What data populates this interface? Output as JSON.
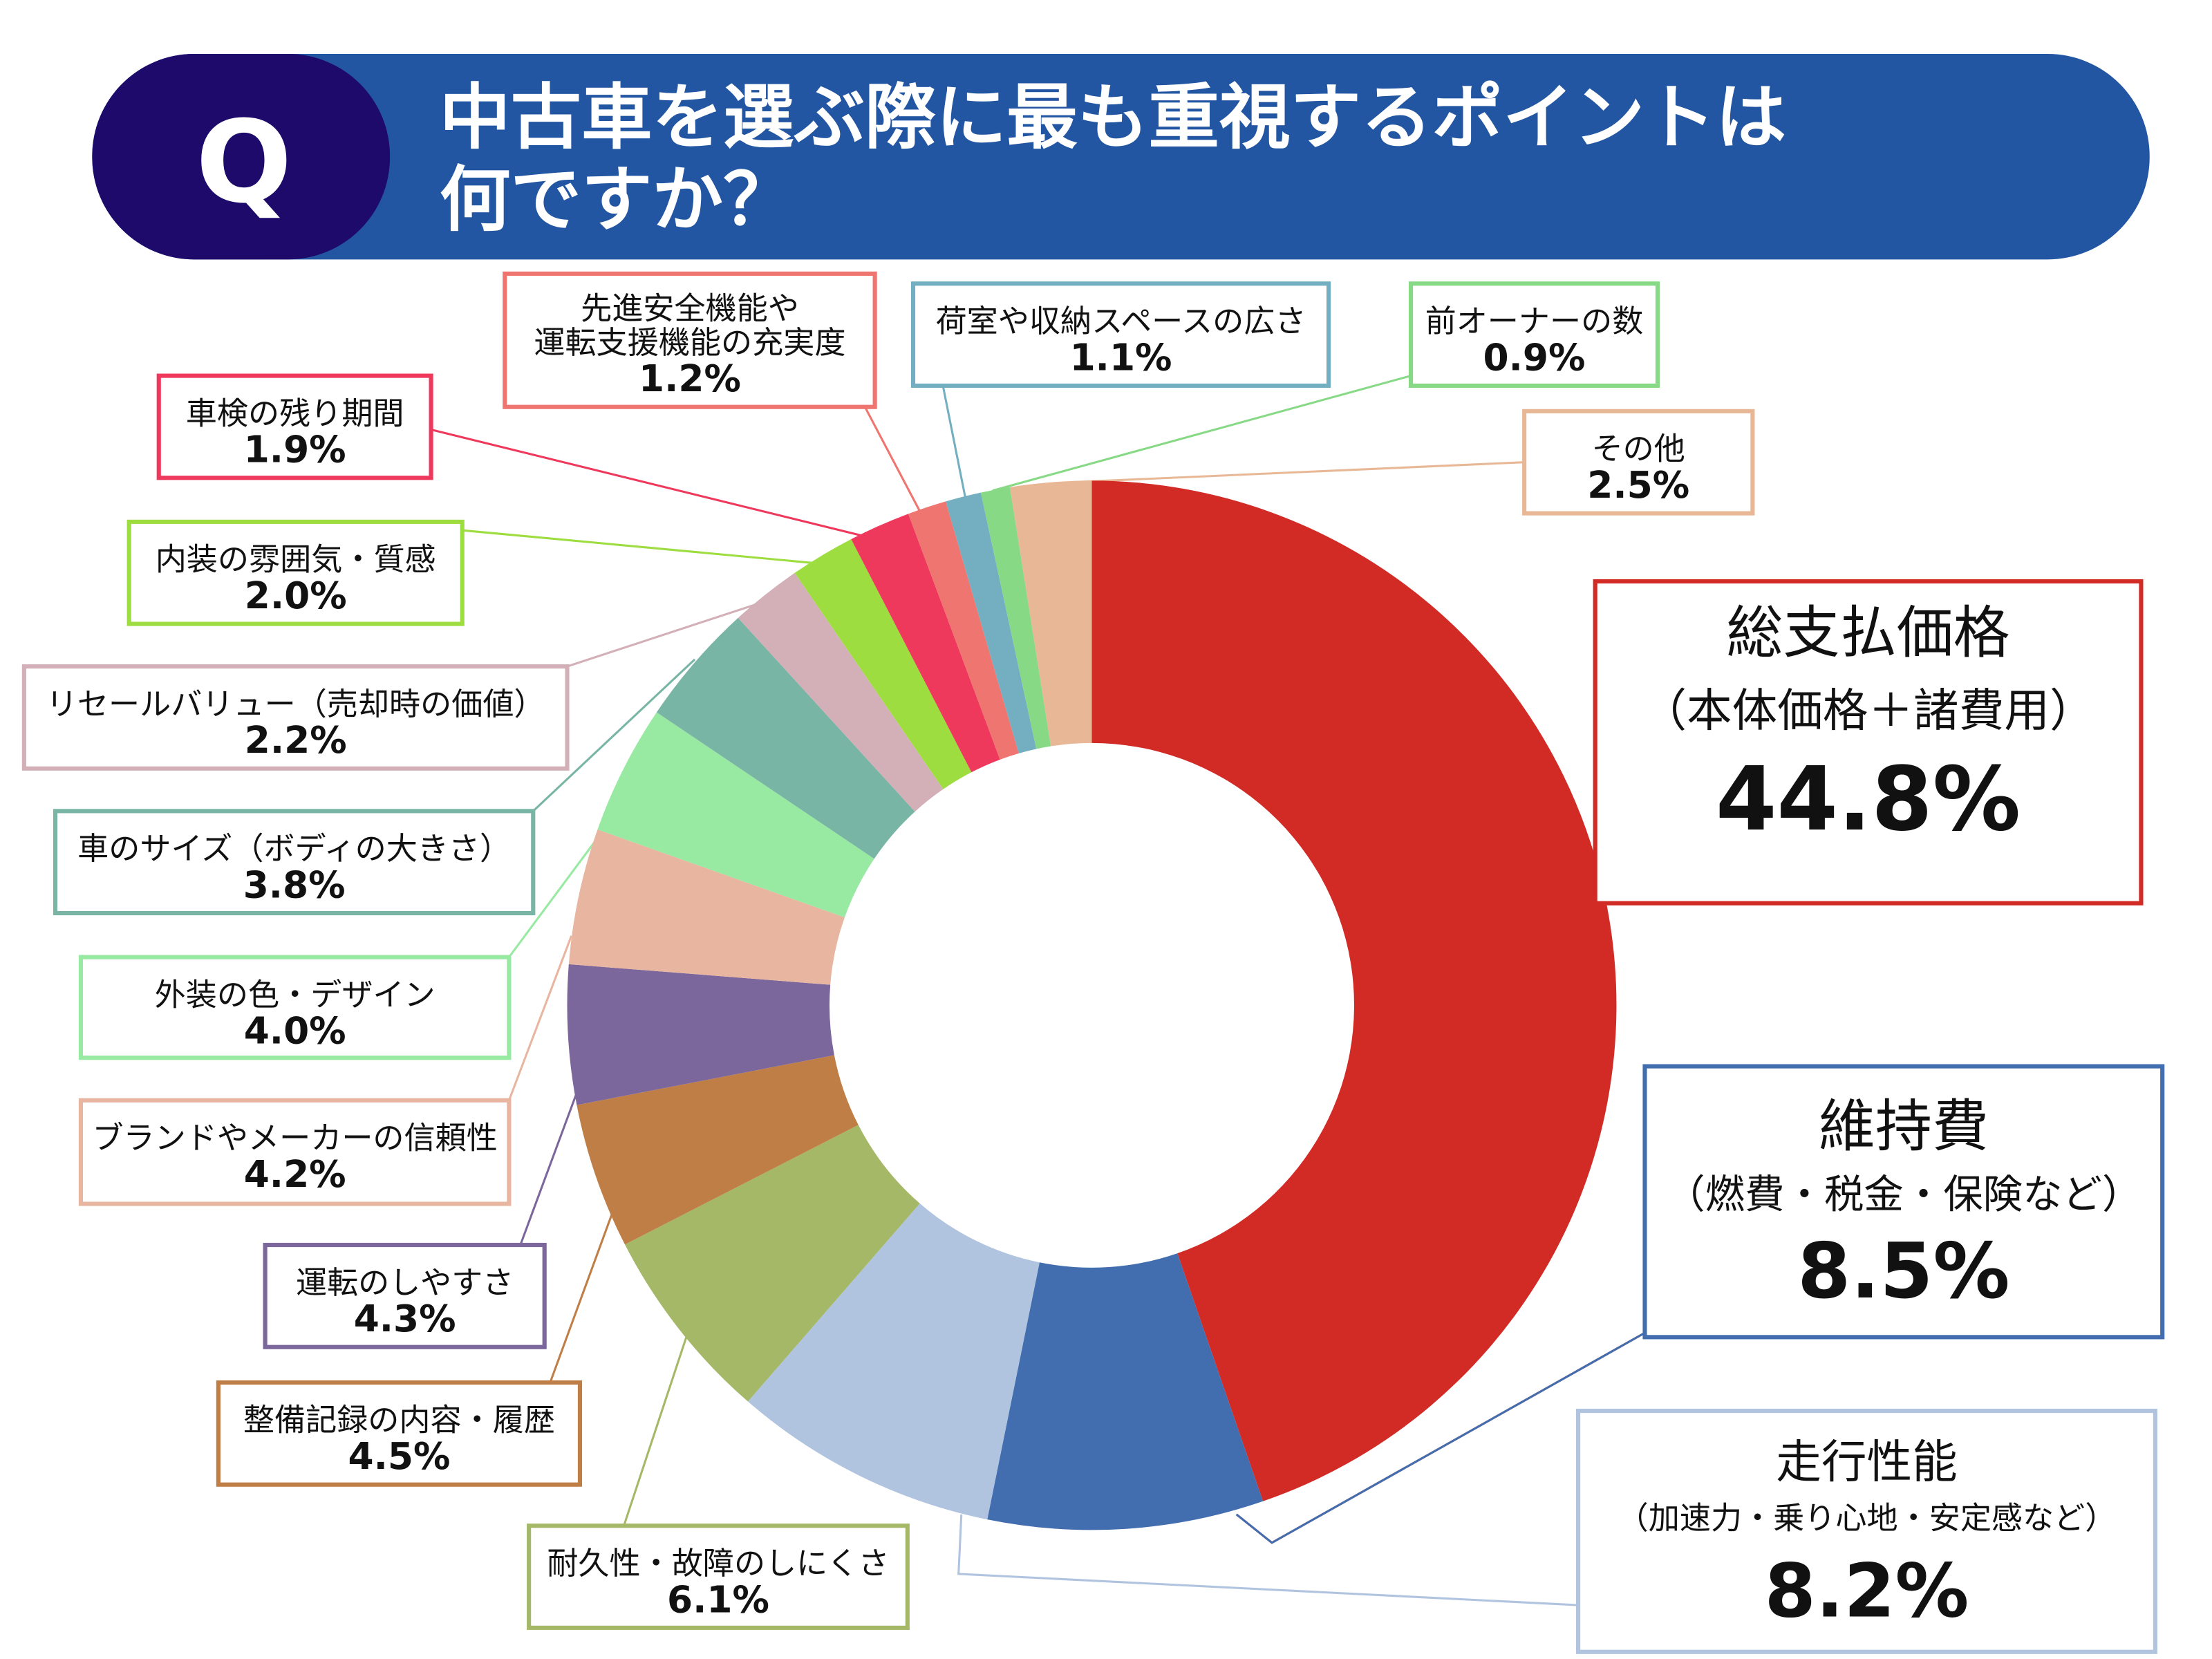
{
  "header": {
    "q_mark": "Q",
    "title_line1": "中古車を選ぶ際に最も重視するポイントは",
    "title_line2": "何ですか？",
    "colors": {
      "band": "#2356a2",
      "q_badge": "#1e0a6a"
    }
  },
  "chart_data": {
    "type": "pie",
    "style": "donut",
    "title": "中古車を選ぶ際に最も重視するポイントは何ですか？",
    "unit": "%",
    "start": "top, clockwise",
    "slices": [
      {
        "label": "総支払価格",
        "sub": "（本体価格＋諸費用）",
        "value": 44.8,
        "display": "44.8%",
        "color": "#d22b26"
      },
      {
        "label": "維持費",
        "sub": "（燃費・税金・保険など）",
        "value": 8.5,
        "display": "8.5%",
        "color": "#426eb0"
      },
      {
        "label": "走行性能",
        "sub": "（加速力・乗り心地・安定感など）",
        "value": 8.2,
        "display": "8.2%",
        "color": "#b0c4e0"
      },
      {
        "label": "耐久性・故障のしにくさ",
        "value": 6.1,
        "display": "6.1%",
        "color": "#a5b868"
      },
      {
        "label": "整備記録の内容・履歴",
        "value": 4.5,
        "display": "4.5%",
        "color": "#c07e47"
      },
      {
        "label": "運転のしやすさ",
        "value": 4.3,
        "display": "4.3%",
        "color": "#7c679c"
      },
      {
        "label": "ブランドやメーカーの信頼性",
        "value": 4.2,
        "display": "4.2%",
        "color": "#e8b6a0"
      },
      {
        "label": "外装の色・デザイン",
        "value": 4.0,
        "display": "4.0%",
        "color": "#98e9a1"
      },
      {
        "label": "車のサイズ（ボディの大きさ）",
        "value": 3.8,
        "display": "3.8%",
        "color": "#79b5a5"
      },
      {
        "label": "リセールバリュー（売却時の価値）",
        "value": 2.2,
        "display": "2.2%",
        "color": "#d3b0b8"
      },
      {
        "label": "内装の雰囲気・質感",
        "value": 2.0,
        "display": "2.0%",
        "color": "#9ddd40"
      },
      {
        "label": "車検の残り期間",
        "value": 1.9,
        "display": "1.9%",
        "color": "#ef395c"
      },
      {
        "label": "先進安全機能や",
        "label2": "運転支援機能の充実度",
        "value": 1.2,
        "display": "1.2%",
        "color": "#ef7570"
      },
      {
        "label": "荷室や収納スペースの広さ",
        "value": 1.1,
        "display": "1.1%",
        "color": "#73afc0"
      },
      {
        "label": "前オーナーの数",
        "value": 0.9,
        "display": "0.9%",
        "color": "#87d986"
      },
      {
        "label": "その他",
        "value": 2.5,
        "display": "2.5%",
        "color": "#e8b896"
      }
    ]
  }
}
